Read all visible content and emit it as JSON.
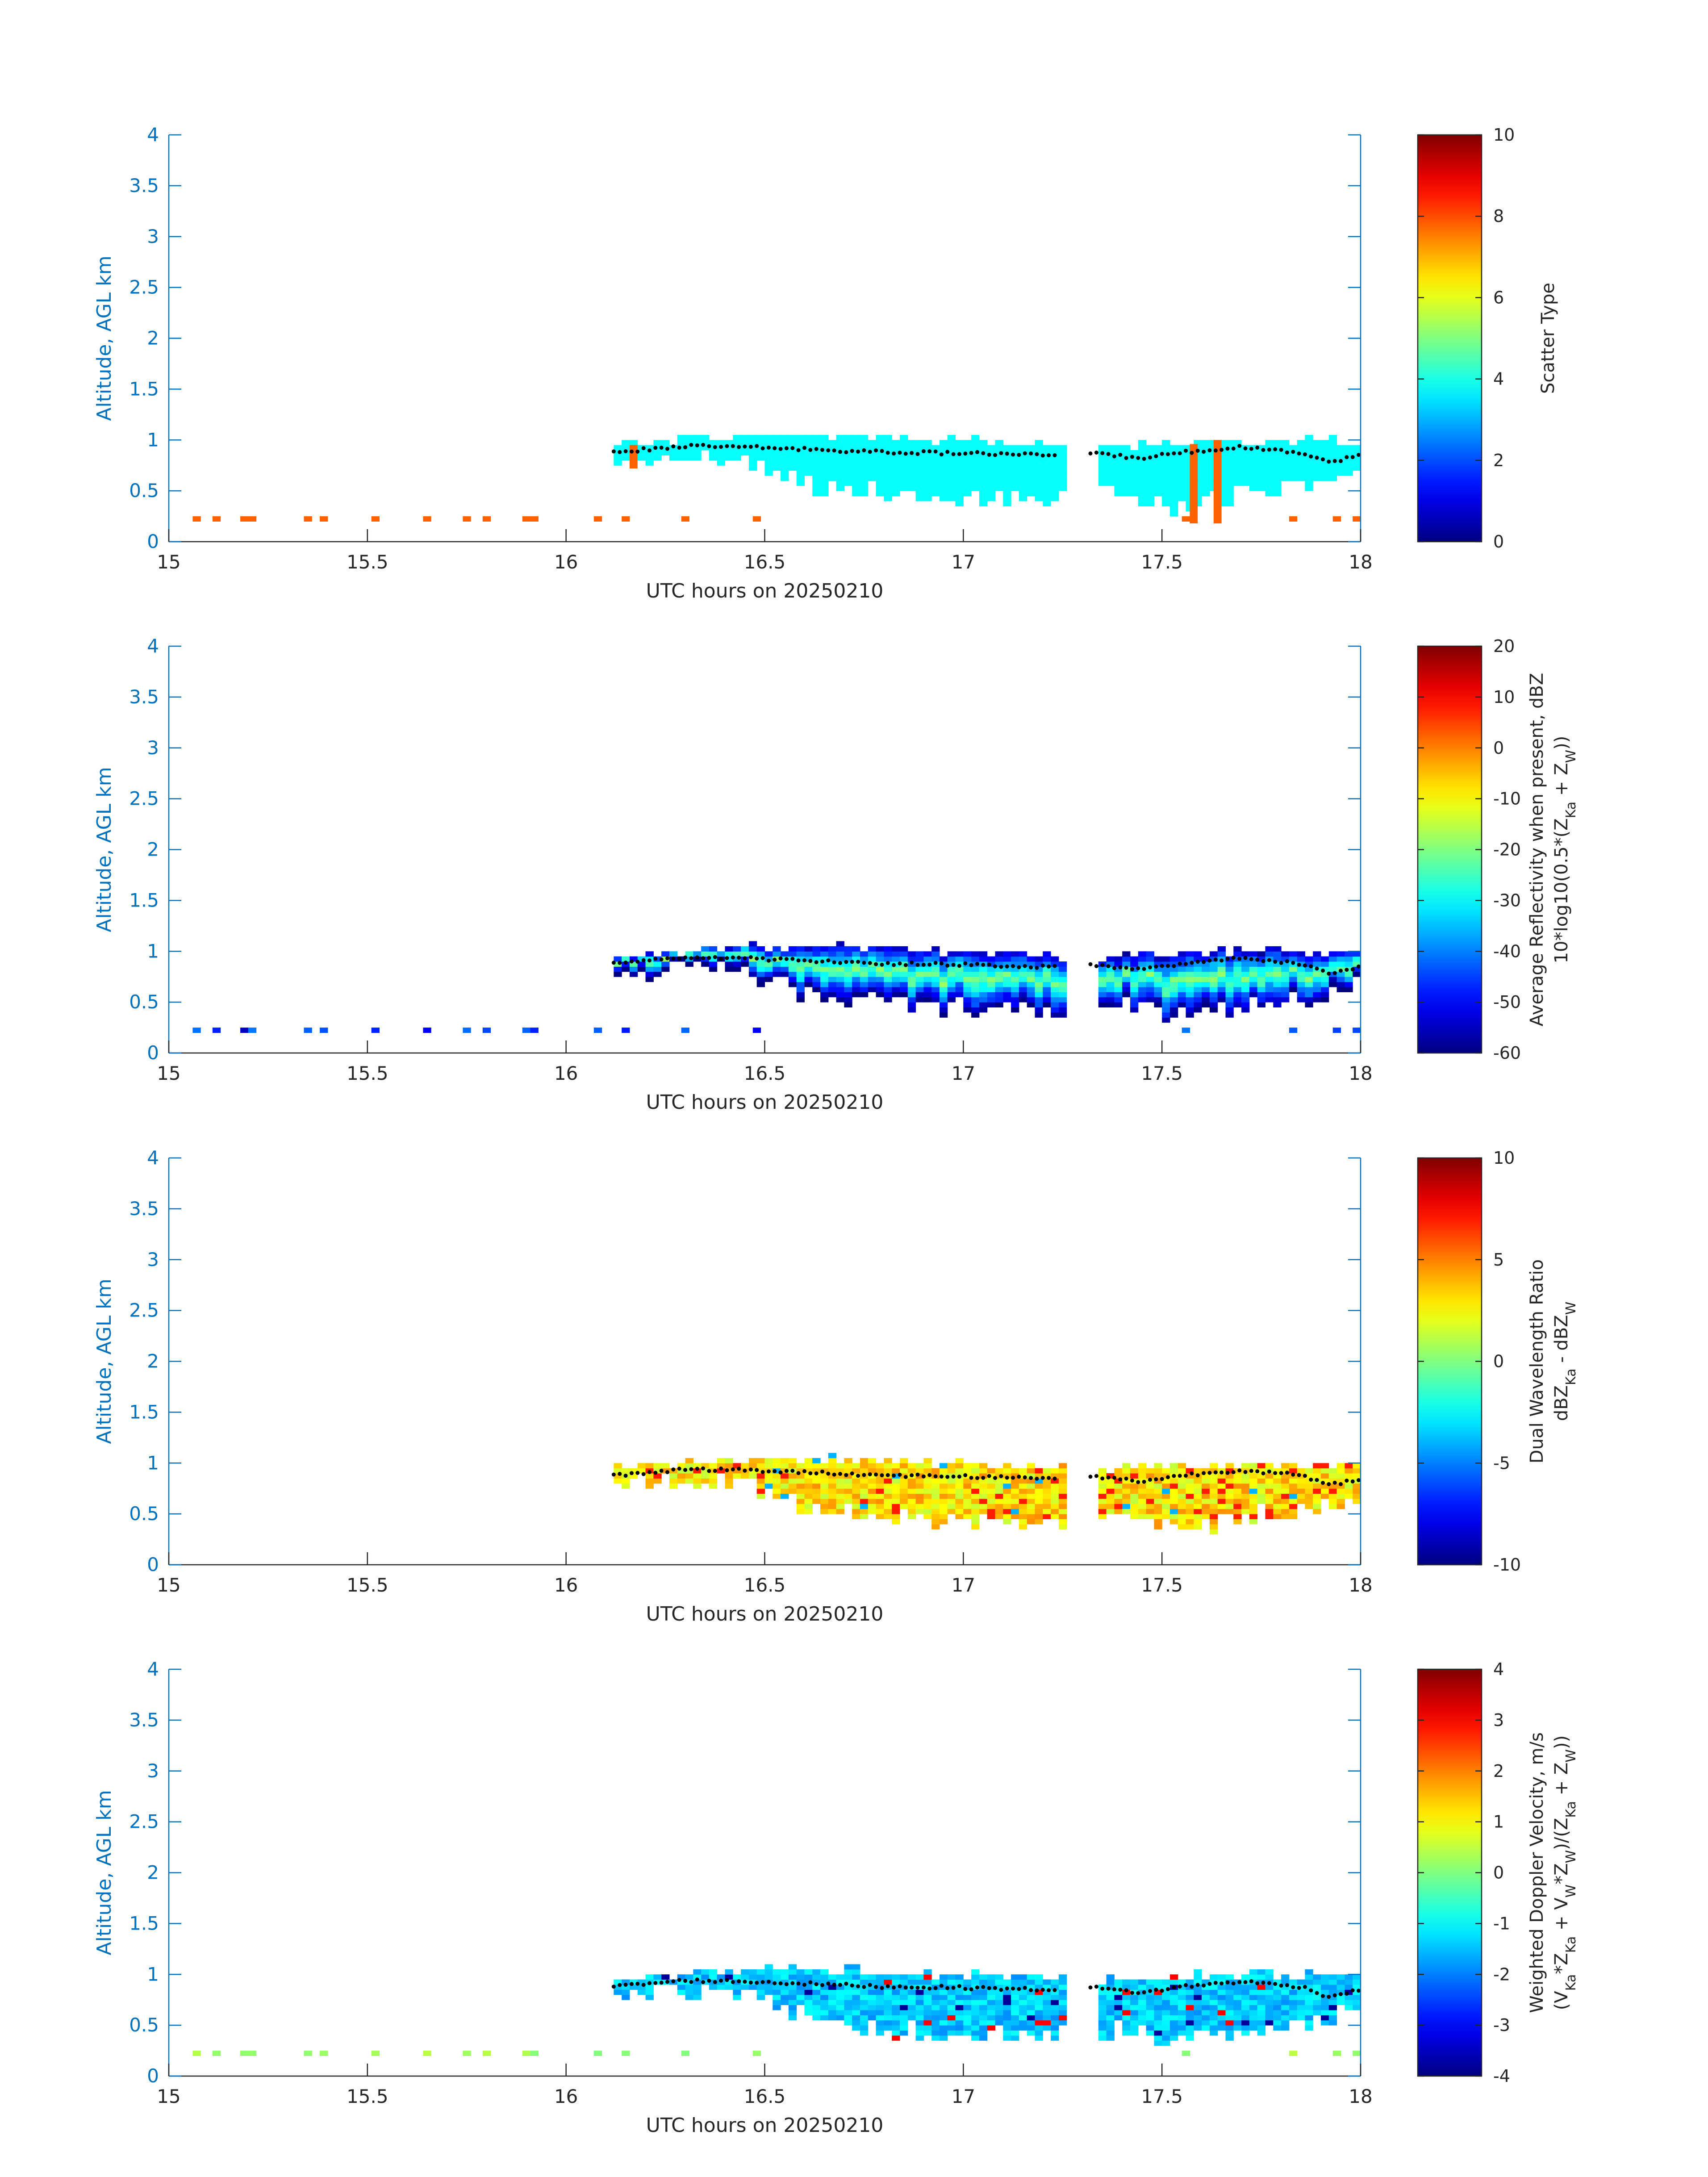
{
  "colors": {
    "axis_blue": "#0072BD",
    "axis_dark": "#262626",
    "dot_color": "#000000"
  },
  "colormap": "jet",
  "chart_data": [
    {
      "type": "heatmap",
      "xlabel": "UTC hours on 20250210",
      "ylabel": "Altitude, AGL km",
      "xlim": [
        15,
        18
      ],
      "ylim": [
        0,
        4
      ],
      "xticks": [
        15,
        15.5,
        16,
        16.5,
        17,
        17.5,
        18
      ],
      "yticks": [
        0,
        0.5,
        1,
        1.5,
        2,
        2.5,
        3,
        3.5,
        4
      ],
      "colorbar": {
        "title": "Scatter Type",
        "subtitle": "",
        "min": 0,
        "max": 10,
        "ticks": [
          0,
          2,
          4,
          6,
          8,
          10
        ]
      },
      "field": "scatter_type"
    },
    {
      "type": "heatmap",
      "xlabel": "UTC hours on 20250210",
      "ylabel": "Altitude, AGL km",
      "xlim": [
        15,
        18
      ],
      "ylim": [
        0,
        4
      ],
      "xticks": [
        15,
        15.5,
        16,
        16.5,
        17,
        17.5,
        18
      ],
      "yticks": [
        0,
        0.5,
        1,
        1.5,
        2,
        2.5,
        3,
        3.5,
        4
      ],
      "colorbar": {
        "title": "Average Reflectivity when present, dBZ",
        "subtitle": "10*log10(0.5*(Z_Ka + Z_W))",
        "min": -60,
        "max": 20,
        "ticks": [
          -60,
          -50,
          -40,
          -30,
          -20,
          -10,
          0,
          10,
          20
        ]
      },
      "field": "reflectivity"
    },
    {
      "type": "heatmap",
      "xlabel": "UTC hours on 20250210",
      "ylabel": "Altitude, AGL km",
      "xlim": [
        15,
        18
      ],
      "ylim": [
        0,
        4
      ],
      "xticks": [
        15,
        15.5,
        16,
        16.5,
        17,
        17.5,
        18
      ],
      "yticks": [
        0,
        0.5,
        1,
        1.5,
        2,
        2.5,
        3,
        3.5,
        4
      ],
      "colorbar": {
        "title": "Dual Wavelength Ratio",
        "subtitle": "dBZ_Ka - dBZ_W",
        "min": -10,
        "max": 10,
        "ticks": [
          -10,
          -5,
          0,
          5,
          10
        ]
      },
      "field": "dwr"
    },
    {
      "type": "heatmap",
      "xlabel": "UTC hours on 20250210",
      "ylabel": "Altitude, AGL km",
      "xlim": [
        15,
        18
      ],
      "ylim": [
        0,
        4
      ],
      "xticks": [
        15,
        15.5,
        16,
        16.5,
        17,
        17.5,
        18
      ],
      "yticks": [
        0,
        0.5,
        1,
        1.5,
        2,
        2.5,
        3,
        3.5,
        4
      ],
      "colorbar": {
        "title": "Weighted Doppler Velocity, m/s",
        "subtitle": "(V_Ka*Z_Ka + V_W*Z_W)/(Z_Ka + Z_W)",
        "min": -4,
        "max": 4,
        "ticks": [
          -4,
          -3,
          -2,
          -1,
          0,
          1,
          2,
          3,
          4
        ]
      },
      "field": "velocity"
    }
  ],
  "cloud_layer": {
    "start_hour": 16.12,
    "end_hour": 18,
    "top_km": [
      [
        16.12,
        0.92
      ],
      [
        16.3,
        0.98
      ],
      [
        16.5,
        1.02
      ],
      [
        16.7,
        1.02
      ],
      [
        16.9,
        0.98
      ],
      [
        17.1,
        0.95
      ],
      [
        17.3,
        0.92
      ],
      [
        17.5,
        0.95
      ],
      [
        17.7,
        0.98
      ],
      [
        17.9,
        0.97
      ],
      [
        18,
        0.95
      ]
    ],
    "base_km": [
      [
        16.12,
        0.82
      ],
      [
        16.3,
        0.85
      ],
      [
        16.45,
        0.8
      ],
      [
        16.6,
        0.6
      ],
      [
        16.8,
        0.5
      ],
      [
        17.0,
        0.45
      ],
      [
        17.2,
        0.45
      ],
      [
        17.4,
        0.5
      ],
      [
        17.55,
        0.35
      ],
      [
        17.7,
        0.5
      ],
      [
        17.85,
        0.55
      ],
      [
        18,
        0.7
      ]
    ],
    "gap": [
      17.24,
      17.32
    ],
    "cloud_top_dots_km": [
      [
        16.12,
        0.88
      ],
      [
        16.3,
        0.94
      ],
      [
        16.45,
        0.93
      ],
      [
        16.6,
        0.91
      ],
      [
        16.8,
        0.88
      ],
      [
        17.0,
        0.87
      ],
      [
        17.2,
        0.85
      ],
      [
        17.3,
        0.88
      ],
      [
        17.45,
        0.82
      ],
      [
        17.55,
        0.88
      ],
      [
        17.7,
        0.93
      ],
      [
        17.85,
        0.88
      ],
      [
        17.92,
        0.78
      ],
      [
        18,
        0.85
      ]
    ]
  },
  "surface_echoes_hours": [
    15.06,
    15.11,
    15.18,
    15.2,
    15.34,
    15.38,
    15.51,
    15.64,
    15.74,
    15.79,
    15.89,
    15.91,
    16.07,
    16.14,
    16.47,
    16.29,
    17.55,
    17.82,
    17.93,
    17.98
  ],
  "spikes": {
    "panel1": [
      {
        "hour": 16.16,
        "bottom_km": 0.72,
        "top_km": 0.95
      },
      {
        "hour": 17.57,
        "bottom_km": 0.18,
        "top_km": 0.96
      },
      {
        "hour": 17.63,
        "bottom_km": 0.18,
        "top_km": 1.0
      }
    ]
  }
}
